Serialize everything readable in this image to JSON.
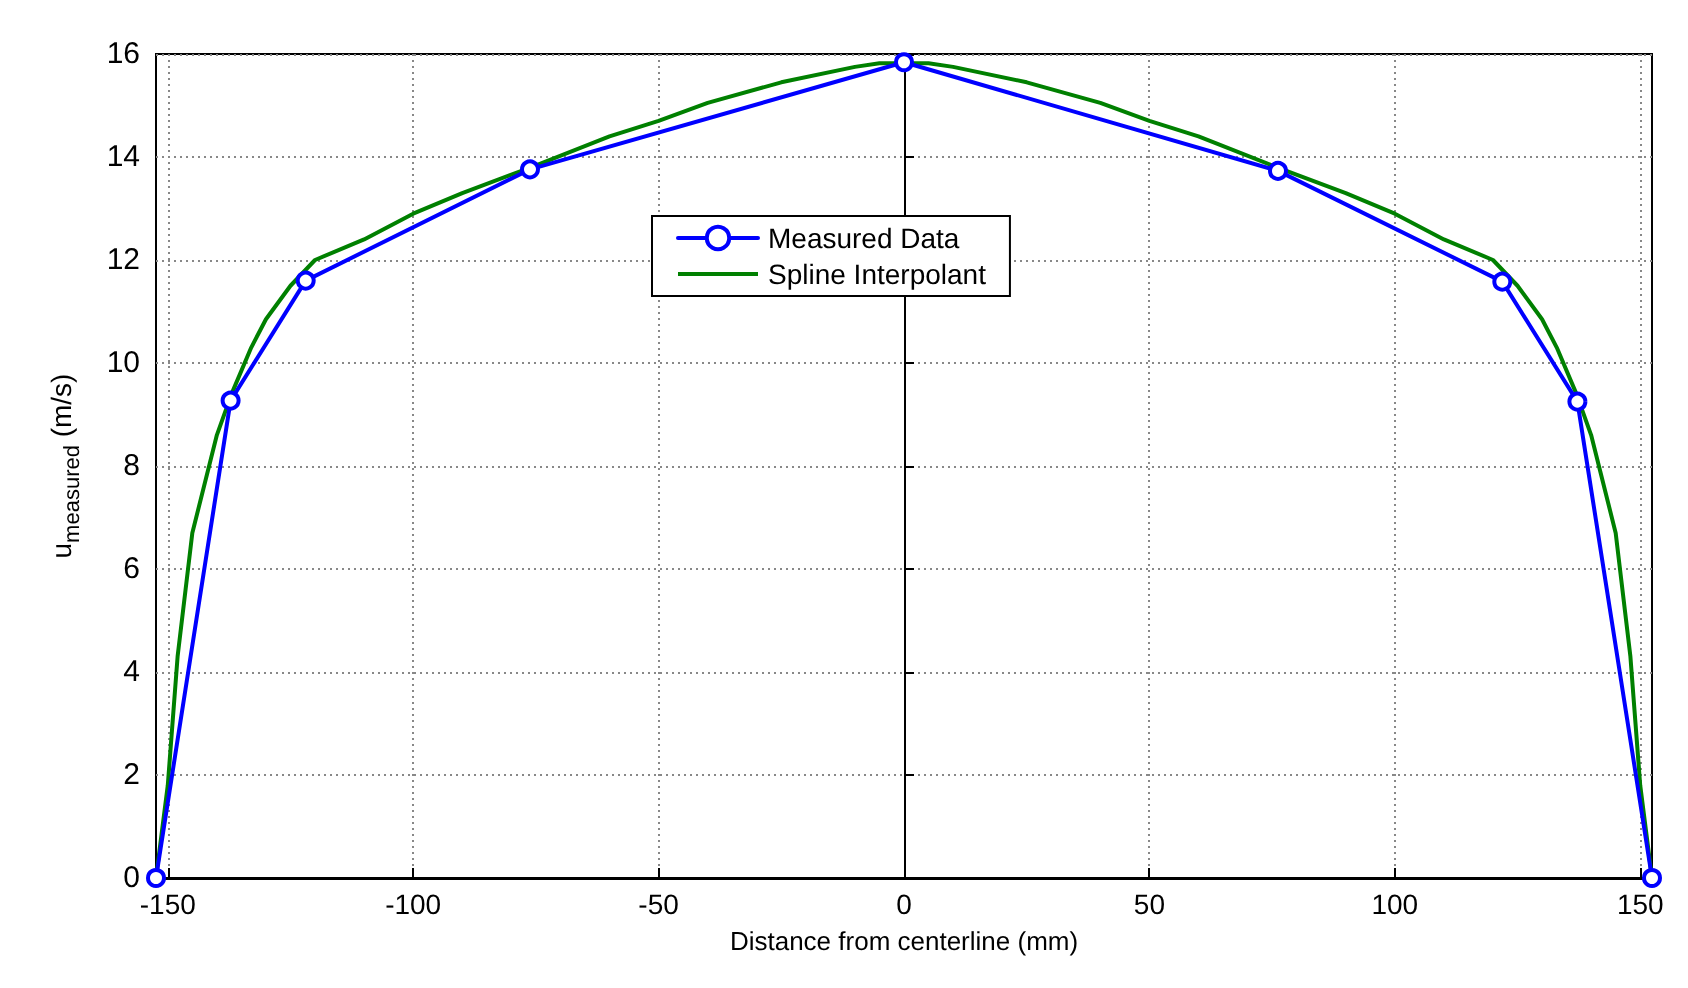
{
  "chart_data": {
    "type": "line",
    "xlabel": "Distance from centerline (mm)",
    "ylabel": "u$_{measured}$ (m/s)",
    "xlim": [
      -152.4,
      152.4
    ],
    "xticks": [
      -150,
      -100,
      -50,
      0,
      50,
      100,
      150
    ],
    "ylim": [
      0,
      16
    ],
    "yticks": [
      0,
      2,
      4,
      6,
      8,
      10,
      12,
      14,
      16
    ],
    "grid": true,
    "legend": "top",
    "line_style": "solid",
    "series": [
      {
        "name": "Measured Data",
        "color": "#0000ff",
        "marker": "circle",
        "x": [
          -152.4,
          -137.2,
          -121.9,
          -76.2,
          0,
          76.2,
          121.9,
          137.2,
          152.4
        ],
        "values": [
          0,
          9.27,
          11.6,
          13.76,
          15.84,
          13.73,
          11.58,
          9.25,
          0
        ]
      },
      {
        "name": "Spline Interpolant",
        "color": "#008000",
        "marker": "none",
        "x": [
          -152.4,
          -150,
          -148,
          -145,
          -140,
          -137,
          -133,
          -130,
          -125,
          -120,
          -110,
          -100,
          -90,
          -76,
          -60,
          -50,
          -40,
          -25,
          -10,
          -5,
          5,
          10,
          25,
          40,
          50,
          60,
          76,
          90,
          100,
          110,
          120,
          125,
          130,
          133,
          137,
          140,
          145,
          148,
          150,
          152.4
        ],
        "values": [
          0,
          1.8,
          4.3,
          6.7,
          8.6,
          9.4,
          10.3,
          10.85,
          11.5,
          12.0,
          12.4,
          12.9,
          13.3,
          13.8,
          14.4,
          14.7,
          15.05,
          15.45,
          15.75,
          15.82,
          15.82,
          15.75,
          15.45,
          15.05,
          14.7,
          14.4,
          13.8,
          13.3,
          12.9,
          12.4,
          12.0,
          11.5,
          10.85,
          10.3,
          9.4,
          8.6,
          6.7,
          4.3,
          1.8,
          0
        ]
      }
    ]
  }
}
